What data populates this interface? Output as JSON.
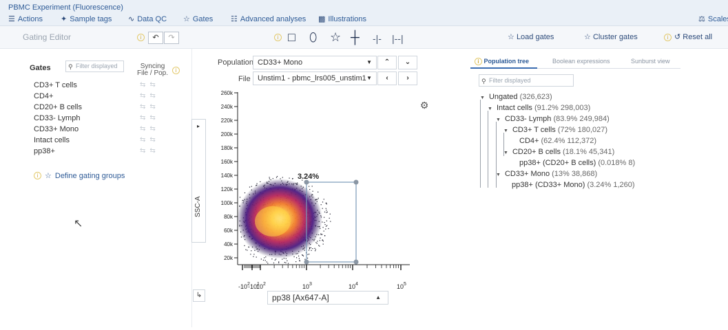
{
  "app": {
    "experiment_title": "PBMC Experiment (Fluorescence)"
  },
  "menu": {
    "actions": "Actions",
    "sample_tags": "Sample tags",
    "data_qc": "Data QC",
    "gates": "Gates",
    "advanced_analyses": "Advanced analyses",
    "illustrations": "Illustrations",
    "scales": "Scales"
  },
  "toolbar": {
    "title": "Gating Editor",
    "load_gates": "Load gates",
    "cluster_gates": "Cluster gates",
    "reset_all": "Reset all",
    "info_glyph": "i"
  },
  "gates_panel": {
    "heading": "Gates",
    "filter_placeholder": "Filter displayed",
    "syncing_line1": "Syncing",
    "syncing_line2": "File / Pop.",
    "items": [
      {
        "label": "CD3+ T cells"
      },
      {
        "label": "CD4+"
      },
      {
        "label": "CD20+ B cells"
      },
      {
        "label": "CD33- Lymph"
      },
      {
        "label": "CD33+ Mono"
      },
      {
        "label": "Intact cells"
      },
      {
        "label": "pp38+"
      }
    ],
    "define_groups": "Define gating groups"
  },
  "plot": {
    "population_label": "Population",
    "population_value": "CD33+ Mono",
    "file_label": "File",
    "file_value": "Unstim1 - pbmc_lrs005_unstim1",
    "y_axis_label": "SSC-A",
    "x_axis_value": "pp38 [Ax647-A]",
    "gate_percent": "3.24%",
    "y_ticks": [
      "260k",
      "240k",
      "220k",
      "200k",
      "180k",
      "160k",
      "140k",
      "120k",
      "100k",
      "80k",
      "60k",
      "40k",
      "20k"
    ],
    "x_ticks": [
      {
        "base": "-10",
        "exp": "2"
      },
      {
        "base": "-10",
        "exp": "1"
      },
      {
        "base": "10",
        "exp": "2"
      },
      {
        "base": "10",
        "exp": "3"
      },
      {
        "base": "10",
        "exp": "4"
      },
      {
        "base": "10",
        "exp": "5"
      }
    ]
  },
  "right_panel": {
    "tabs": [
      "Population tree",
      "Boolean expressions",
      "Sunburst view"
    ],
    "filter_placeholder": "Filter displayed",
    "tree": [
      {
        "name": "Ungated",
        "stat": "(326,623)"
      },
      {
        "name": "Intact cells",
        "stat": "(91.2%  298,003)"
      },
      {
        "name": "CD33- Lymph",
        "stat": "(83.9%  249,984)"
      },
      {
        "name": "CD3+ T cells",
        "stat": "(72%  180,027)"
      },
      {
        "name": "CD4+",
        "stat": "(62.4%  112,372)"
      },
      {
        "name": "CD20+ B cells",
        "stat": "(18.1%  45,341)"
      },
      {
        "name": "pp38+ (CD20+ B cells)",
        "stat": "(0.018%  8)"
      },
      {
        "name": "CD33+ Mono",
        "stat": "(13%  38,868)"
      },
      {
        "name": "pp38+ (CD33+ Mono)",
        "stat": "(3.24%  1,260)"
      }
    ]
  }
}
